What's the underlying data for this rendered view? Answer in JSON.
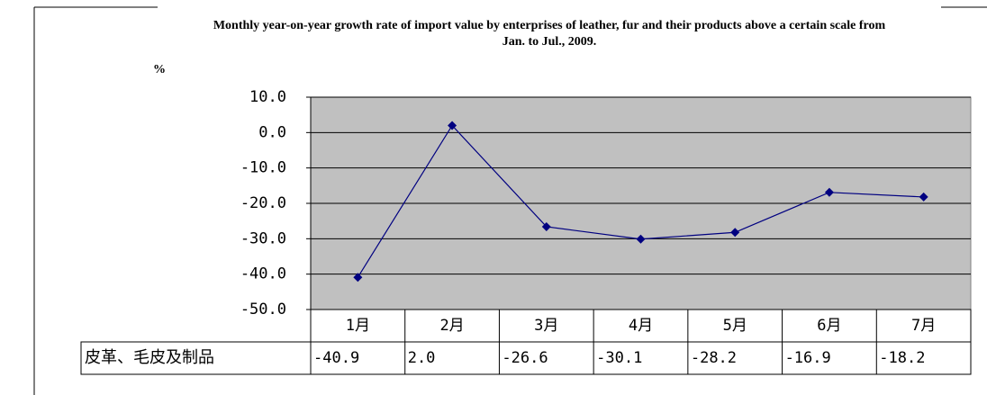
{
  "chart_data": {
    "type": "line",
    "title": "Monthly year-on-year growth rate of import value by enterprises of leather, fur and their products above a certain scale from Jan. to Jul., 2009.",
    "y_label": "%",
    "categories": [
      "1月",
      "2月",
      "3月",
      "4月",
      "5月",
      "6月",
      "7月"
    ],
    "series": [
      {
        "name": "皮革、毛皮及制品",
        "color": "#000080",
        "values": [
          -40.9,
          2.0,
          -26.6,
          -30.1,
          -28.2,
          -16.9,
          -18.2
        ],
        "value_labels": [
          "-40.9",
          "2.0",
          "-26.6",
          "-30.1",
          "-28.2",
          "-16.9",
          "-18.2"
        ]
      }
    ],
    "ylim": [
      -50,
      10
    ],
    "yticks": [
      {
        "value": 10,
        "label": "10.0"
      },
      {
        "value": 0,
        "label": "0.0"
      },
      {
        "value": -10,
        "label": "-10.0"
      },
      {
        "value": -20,
        "label": "-20.0"
      },
      {
        "value": -30,
        "label": "-30.0"
      },
      {
        "value": -40,
        "label": "-40.0"
      },
      {
        "value": -50,
        "label": "-50.0"
      }
    ],
    "grid": true,
    "plot_background": "#c0c0c0"
  }
}
